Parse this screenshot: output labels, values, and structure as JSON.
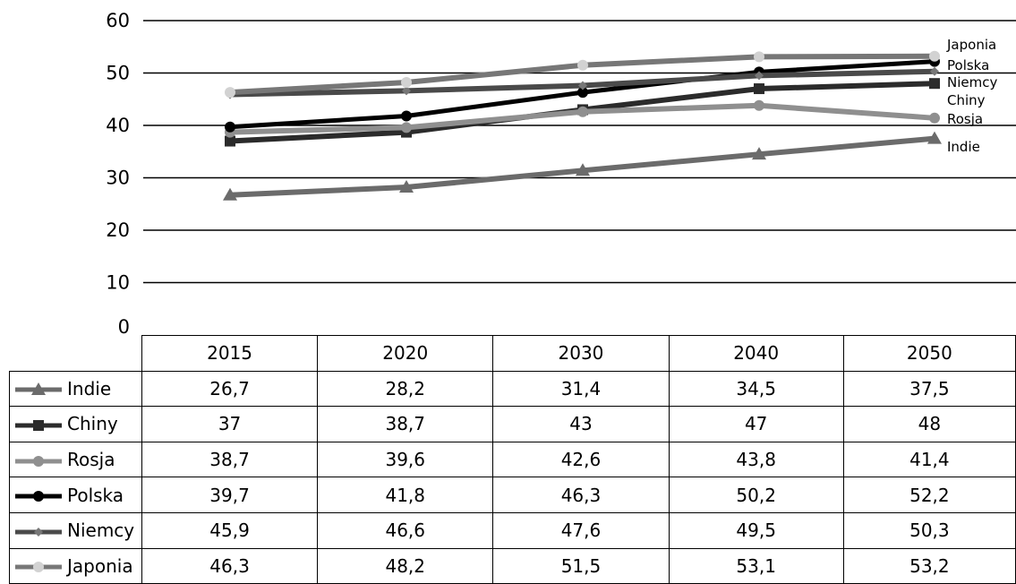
{
  "chart_data": {
    "type": "line",
    "title": "",
    "xlabel": "",
    "ylabel": "",
    "categories": [
      "2015",
      "2020",
      "2030",
      "2040",
      "2050"
    ],
    "ylim": [
      0,
      60
    ],
    "yticks": [
      0,
      10,
      20,
      30,
      40,
      50,
      60
    ],
    "grid": true,
    "legend": "data table below chart; series names printed at line ends",
    "series": [
      {
        "name": "Indie",
        "values": [
          26.7,
          28.2,
          31.4,
          34.5,
          37.5
        ],
        "color": "#6b6b6b",
        "marker": "triangle"
      },
      {
        "name": "Chiny",
        "values": [
          37,
          38.7,
          43,
          47,
          48
        ],
        "color": "#2b2b2b",
        "marker": "square"
      },
      {
        "name": "Rosja",
        "values": [
          38.7,
          39.6,
          42.6,
          43.8,
          41.4
        ],
        "color": "#8f8f8f",
        "marker": "circle"
      },
      {
        "name": "Polska",
        "values": [
          39.7,
          41.8,
          46.3,
          50.2,
          52.2
        ],
        "color": "#000000",
        "marker": "circle"
      },
      {
        "name": "Niemcy",
        "values": [
          45.9,
          46.6,
          47.6,
          49.5,
          50.3
        ],
        "color": "#4a4a4a",
        "marker": "diamond"
      },
      {
        "name": "Japonia",
        "values": [
          46.3,
          48.2,
          51.5,
          53.1,
          53.2
        ],
        "color": "#777777",
        "marker": "circle-light"
      }
    ],
    "table": {
      "header": [
        "2015",
        "2020",
        "2030",
        "2040",
        "2050"
      ],
      "rows": [
        {
          "label": "Indie",
          "cells": [
            "26,7",
            "28,2",
            "31,4",
            "34,5",
            "37,5"
          ]
        },
        {
          "label": "Chiny",
          "cells": [
            "37",
            "38,7",
            "43",
            "47",
            "48"
          ]
        },
        {
          "label": "Rosja",
          "cells": [
            "38,7",
            "39,6",
            "42,6",
            "43,8",
            "41,4"
          ]
        },
        {
          "label": "Polska",
          "cells": [
            "39,7",
            "41,8",
            "46,3",
            "50,2",
            "52,2"
          ]
        },
        {
          "label": "Niemcy",
          "cells": [
            "45,9",
            "46,6",
            "47,6",
            "49,5",
            "50,3"
          ]
        },
        {
          "label": "Japonia",
          "cells": [
            "46,3",
            "48,2",
            "51,5",
            "53,1",
            "53,2"
          ]
        }
      ]
    }
  }
}
